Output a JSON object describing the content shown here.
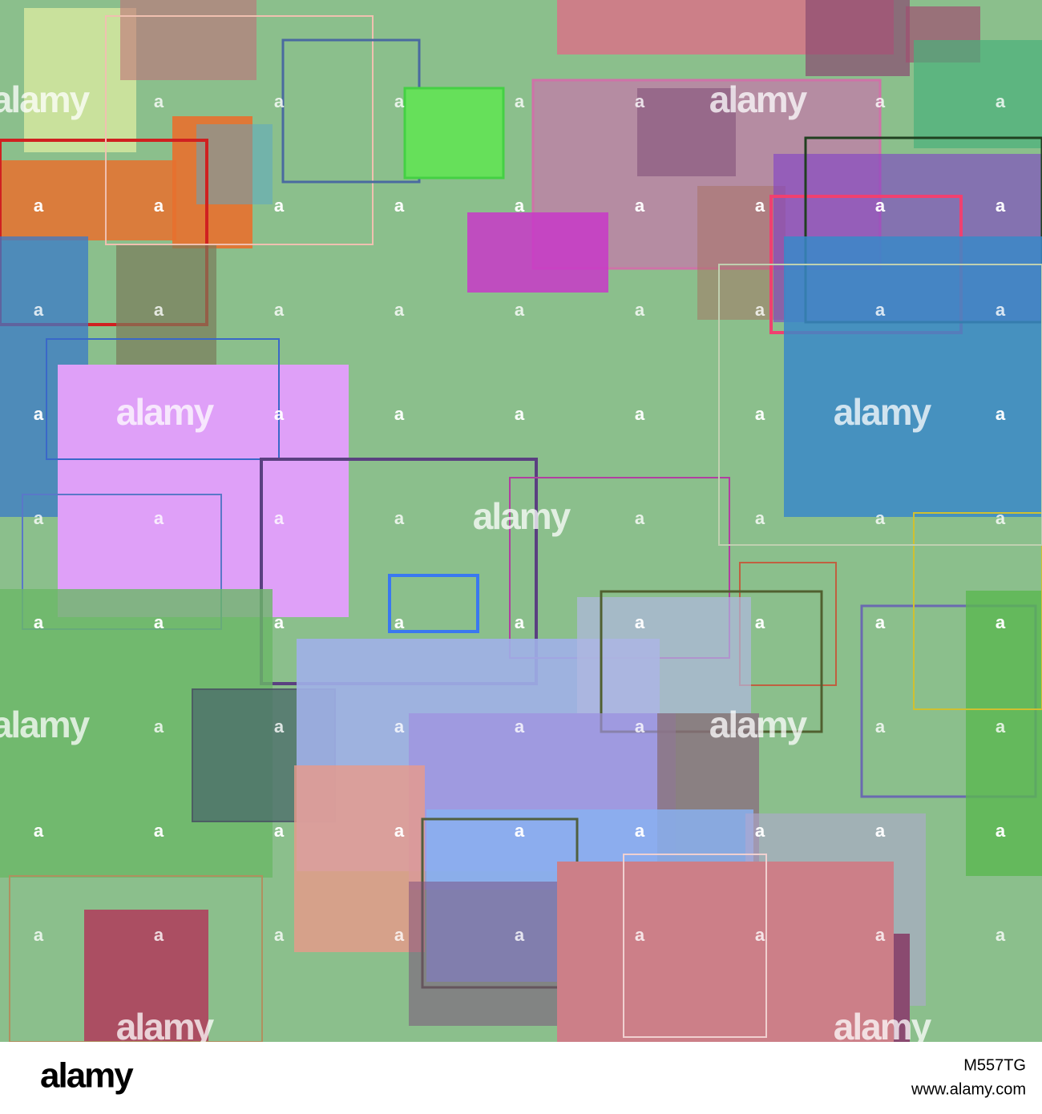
{
  "watermark": "alamy",
  "watermark_small": "a",
  "footer": {
    "logo": "alamy",
    "image_id": "M557TG",
    "site": "www.alamy.com"
  }
}
